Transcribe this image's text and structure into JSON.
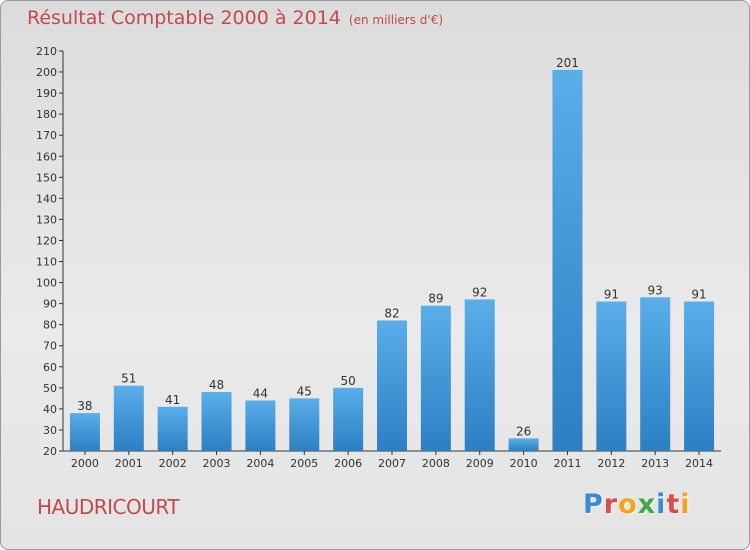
{
  "header": {
    "title": "Résultat Comptable 2000 à 2014",
    "subtitle": "(en milliers d'€)"
  },
  "footer": {
    "place": "HAUDRICOURT",
    "logo": [
      "P",
      "r",
      "o",
      "x",
      "i",
      "t",
      "i"
    ]
  },
  "colors": {
    "title": "#c24a4a",
    "bar_top": "#5aaeea",
    "bar_bottom": "#2c7fc2",
    "logo": [
      "#3a8ad6",
      "#e04a4a",
      "#f2a51c",
      "#42a842",
      "#3a8ad6",
      "#e04a4a",
      "#f2a51c"
    ]
  },
  "chart_data": {
    "type": "bar",
    "title": "Résultat Comptable 2000 à 2014",
    "subtitle": "(en milliers d'€)",
    "categories": [
      "2000",
      "2001",
      "2002",
      "2003",
      "2004",
      "2005",
      "2006",
      "2007",
      "2008",
      "2009",
      "2010",
      "2011",
      "2012",
      "2013",
      "2014"
    ],
    "values": [
      38,
      51,
      41,
      48,
      44,
      45,
      50,
      82,
      89,
      92,
      26,
      201,
      91,
      93,
      91
    ],
    "ylim": [
      20,
      210
    ],
    "yticks": [
      20,
      30,
      40,
      50,
      60,
      70,
      80,
      90,
      100,
      110,
      120,
      130,
      140,
      150,
      160,
      170,
      180,
      190,
      200,
      210
    ],
    "xlabel": "",
    "ylabel": "",
    "grid": false
  }
}
